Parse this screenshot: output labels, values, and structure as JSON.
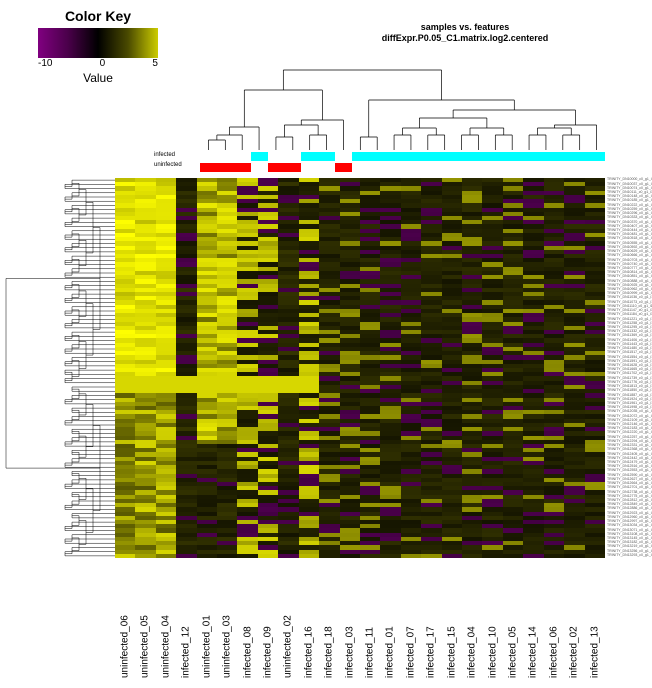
{
  "colorkey": {
    "title": "Color Key",
    "label": "Value",
    "ticks": [
      "-10",
      "0",
      "5"
    ],
    "gradient_stops": [
      "#800080",
      "#4a004a",
      "#000000",
      "#4a4a00",
      "#cccc00"
    ]
  },
  "title": {
    "line1": "samples vs. features",
    "line2": "diffExpr.P0.05_C1.matrix.log2.centered"
  },
  "columns": [
    {
      "name": "uninfected_06",
      "group": "uninfected"
    },
    {
      "name": "uninfected_05",
      "group": "uninfected"
    },
    {
      "name": "uninfected_04",
      "group": "uninfected"
    },
    {
      "name": "infected_12",
      "group": "infected"
    },
    {
      "name": "uninfected_01",
      "group": "uninfected"
    },
    {
      "name": "uninfected_03",
      "group": "uninfected"
    },
    {
      "name": "infected_08",
      "group": "infected"
    },
    {
      "name": "infected_09",
      "group": "infected"
    },
    {
      "name": "uninfected_02",
      "group": "uninfected"
    },
    {
      "name": "infected_16",
      "group": "infected"
    },
    {
      "name": "infected_18",
      "group": "infected"
    },
    {
      "name": "infected_03",
      "group": "infected"
    },
    {
      "name": "infected_11",
      "group": "infected"
    },
    {
      "name": "infected_01",
      "group": "infected"
    },
    {
      "name": "infected_07",
      "group": "infected"
    },
    {
      "name": "infected_17",
      "group": "infected"
    },
    {
      "name": "infected_15",
      "group": "infected"
    },
    {
      "name": "infected_04",
      "group": "infected"
    },
    {
      "name": "infected_10",
      "group": "infected"
    },
    {
      "name": "infected_05",
      "group": "infected"
    },
    {
      "name": "infected_14",
      "group": "infected"
    },
    {
      "name": "infected_06",
      "group": "infected"
    },
    {
      "name": "infected_02",
      "group": "infected"
    },
    {
      "name": "infected_13",
      "group": "infected"
    }
  ],
  "annot_labels": {
    "infected": "infected",
    "uninfected": "uninfected"
  },
  "annot_colors": {
    "infected": "#00ffff",
    "uninfected": "#ff0000",
    "bg": "#ffffff"
  },
  "heatmap": {
    "n_rows": 90,
    "value_min": -10,
    "value_max": 8,
    "background_color": "#ffffff",
    "colormap": [
      "#800080",
      "#5e005e",
      "#300030",
      "#000000",
      "#303000",
      "#6a6a00",
      "#cccc00",
      "#ffff00"
    ]
  },
  "row_label_template": "TRINITY_DN####_c0_g1_i1",
  "dendro_color": "#000000"
}
